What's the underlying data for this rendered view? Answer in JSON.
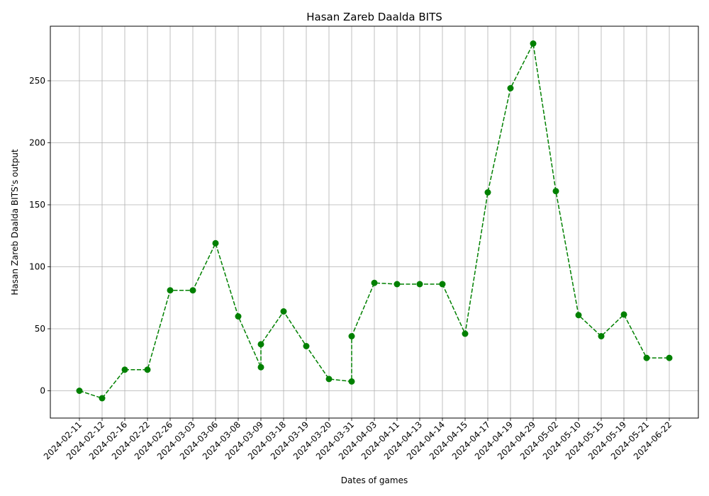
{
  "chart_data": {
    "type": "line",
    "title": "Hasan Zareb Daalda BITS",
    "xlabel": "Dates of games",
    "ylabel": "Hasan Zareb Daalda BITS's output",
    "x": [
      "2024-02-11",
      "2024-02-12",
      "2024-02-16",
      "2024-02-22",
      "2024-02-26",
      "2024-03-03",
      "2024-03-06",
      "2024-03-08",
      "2024-03-09",
      "2024-03-09",
      "2024-03-18",
      "2024-03-19",
      "2024-03-20",
      "2024-03-31",
      "2024-03-31",
      "2024-04-03",
      "2024-04-11",
      "2024-04-13",
      "2024-04-14",
      "2024-04-15",
      "2024-04-17",
      "2024-04-19",
      "2024-04-29",
      "2024-05-02",
      "2024-05-10",
      "2024-05-15",
      "2024-05-19",
      "2024-05-21",
      "2024-06-22"
    ],
    "x_ticks": [
      "2024-02-11",
      "2024-02-12",
      "2024-02-16",
      "2024-02-22",
      "2024-02-26",
      "2024-03-03",
      "2024-03-06",
      "2024-03-08",
      "2024-03-09",
      "2024-03-18",
      "2024-03-19",
      "2024-03-20",
      "2024-03-31",
      "2024-04-03",
      "2024-04-11",
      "2024-04-13",
      "2024-04-14",
      "2024-04-15",
      "2024-04-17",
      "2024-04-19",
      "2024-04-29",
      "2024-05-02",
      "2024-05-10",
      "2024-05-15",
      "2024-05-19",
      "2024-05-21",
      "2024-06-22"
    ],
    "values": [
      0,
      -6,
      17,
      17,
      81,
      81,
      119,
      60,
      19,
      37.5,
      64,
      36,
      9.5,
      7.5,
      44,
      87,
      86,
      86,
      86,
      46,
      160,
      244,
      280,
      161,
      61,
      44,
      61.5,
      26.5,
      26.5
    ],
    "yticks": [
      0,
      50,
      100,
      150,
      200,
      250
    ],
    "ylim": [
      -22,
      294
    ],
    "grid": true,
    "color": "#008000",
    "line_style": "dashed",
    "marker": "circle"
  }
}
